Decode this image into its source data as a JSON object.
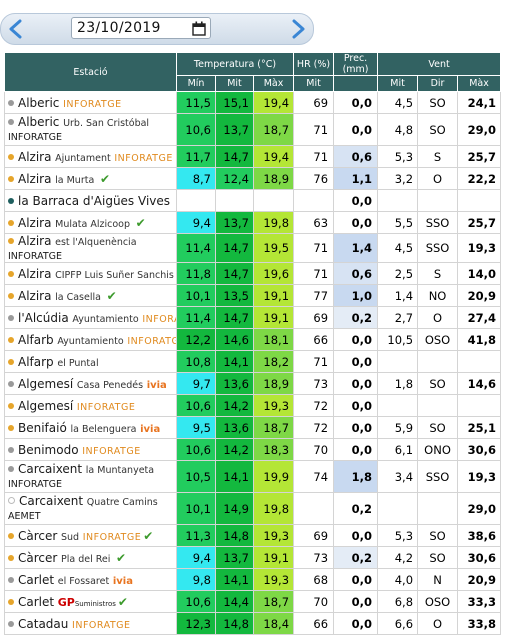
{
  "date_nav": {
    "date": "23/10/2019"
  },
  "headers": {
    "estacio": "Estació",
    "temperatura": "Temperatura (°C)",
    "hr": "HR (%)",
    "prec": "Prec. (mm)",
    "vent": "Vent",
    "min": "Mín",
    "mit": "Mit",
    "max": "Màx",
    "hr_mit": "Mit",
    "vent_mit": "Mit",
    "dir": "Dir",
    "vent_max": "Màx"
  },
  "rows": [
    {
      "name": "Alberic",
      "sub": "",
      "brand": "INFORATGE",
      "brand2": "",
      "check": false,
      "ivia": false,
      "gp": false,
      "dot": "#9a9a9a",
      "min": "11,5",
      "mit": "15,1",
      "max": "19,4",
      "hr": "69",
      "prec": "0,0",
      "vmit": "4,5",
      "dir": "SO",
      "vmax": "24,1",
      "cmin": "#22cc5e",
      "cmit": "#13b83e",
      "cmax": "#b4e636",
      "pbg": "#ffffff"
    },
    {
      "name": "Alberic",
      "sub": "Urb. San Cristóbal",
      "brand": "",
      "brand2": "INFORATGE",
      "check": false,
      "ivia": false,
      "gp": false,
      "dot": "#9a9a9a",
      "min": "10,6",
      "mit": "13,7",
      "max": "18,7",
      "hr": "71",
      "prec": "0,0",
      "vmit": "4,8",
      "dir": "SO",
      "vmax": "29,0",
      "cmin": "#22cc5e",
      "cmit": "#13b83e",
      "cmax": "#7ed846",
      "pbg": "#ffffff",
      "tall": true
    },
    {
      "name": "Alzira",
      "sub": "Ajuntament",
      "brand": "INFORATGE",
      "brand2": "",
      "check": false,
      "ivia": false,
      "gp": false,
      "dot": "#e6a52b",
      "min": "11,7",
      "mit": "14,7",
      "max": "19,4",
      "hr": "71",
      "prec": "0,6",
      "vmit": "5,3",
      "dir": "S",
      "vmax": "25,7",
      "cmin": "#22cc5e",
      "cmit": "#13b83e",
      "cmax": "#b4e636",
      "pbg": "#d7e3f3"
    },
    {
      "name": "Alzira",
      "sub": "la Murta",
      "brand": "",
      "brand2": "",
      "check": true,
      "ivia": false,
      "gp": false,
      "dot": "#e6a52b",
      "min": "8,7",
      "mit": "12,4",
      "max": "18,9",
      "hr": "76",
      "prec": "1,1",
      "vmit": "3,2",
      "dir": "O",
      "vmax": "22,2",
      "cmin": "#34e8f0",
      "cmit": "#22cc5e",
      "cmax": "#7ed846",
      "pbg": "#c8d9f0"
    },
    {
      "name": "la Barraca d'Aigües Vives",
      "sub": "",
      "brand": "",
      "brand2": "",
      "check": true,
      "ivia": false,
      "gp": false,
      "dot": "#1f5f5f",
      "min": "",
      "mit": "",
      "max": "",
      "hr": "",
      "prec": "0,0",
      "vmit": "",
      "dir": "",
      "vmax": "",
      "cmin": "#ffffff",
      "cmit": "#ffffff",
      "cmax": "#ffffff",
      "pbg": "#ffffff",
      "big": true
    },
    {
      "name": "Alzira",
      "sub": "Mulata Alzicoop",
      "brand": "",
      "brand2": "",
      "check": true,
      "ivia": false,
      "gp": false,
      "dot": "#e6a52b",
      "min": "9,4",
      "mit": "13,7",
      "max": "19,8",
      "hr": "63",
      "prec": "0,0",
      "vmit": "5,5",
      "dir": "SSO",
      "vmax": "25,7",
      "cmin": "#34e8f0",
      "cmit": "#13b83e",
      "cmax": "#b4e636",
      "pbg": "#ffffff"
    },
    {
      "name": "Alzira",
      "sub": "est l'Alquenència",
      "brand": "",
      "brand2": "INFORATGE",
      "check": false,
      "ivia": false,
      "gp": false,
      "dot": "#e6a52b",
      "min": "11,4",
      "mit": "14,7",
      "max": "19,5",
      "hr": "71",
      "prec": "1,4",
      "vmit": "4,5",
      "dir": "SSO",
      "vmax": "19,3",
      "cmin": "#22cc5e",
      "cmit": "#13b83e",
      "cmax": "#b4e636",
      "pbg": "#c8d9f0"
    },
    {
      "name": "Alzira",
      "sub": "CIPFP Luis Suñer Sanchis",
      "brand": "",
      "brand2": "",
      "check": false,
      "ivia": false,
      "gp": false,
      "dot": "#e6a52b",
      "min": "11,8",
      "mit": "14,7",
      "max": "19,6",
      "hr": "71",
      "prec": "0,6",
      "vmit": "2,5",
      "dir": "S",
      "vmax": "14,0",
      "cmin": "#22cc5e",
      "cmit": "#13b83e",
      "cmax": "#b4e636",
      "pbg": "#d7e3f3"
    },
    {
      "name": "Alzira",
      "sub": "la Casella",
      "brand": "",
      "brand2": "",
      "check": true,
      "ivia": false,
      "gp": false,
      "dot": "#e6a52b",
      "min": "10,1",
      "mit": "13,5",
      "max": "19,1",
      "hr": "77",
      "prec": "1,0",
      "vmit": "1,4",
      "dir": "NO",
      "vmax": "20,9",
      "cmin": "#22cc5e",
      "cmit": "#13b83e",
      "cmax": "#b4e636",
      "pbg": "#c8d9f0"
    },
    {
      "name": "l'Alcúdia",
      "sub": "Ayuntamiento",
      "brand": "INFORATGE",
      "brand2": "",
      "check": false,
      "ivia": false,
      "gp": false,
      "dot": "#9a9a9a",
      "min": "11,4",
      "mit": "14,7",
      "max": "19,1",
      "hr": "69",
      "prec": "0,2",
      "vmit": "2,7",
      "dir": "O",
      "vmax": "27,4",
      "cmin": "#22cc5e",
      "cmit": "#13b83e",
      "cmax": "#b4e636",
      "pbg": "#e4ecf6"
    },
    {
      "name": "Alfarb",
      "sub": "Ayuntamiento",
      "brand": "INFORATGE",
      "brand2": "",
      "check": false,
      "ivia": false,
      "gp": false,
      "dot": "#e6a52b",
      "min": "12,2",
      "mit": "14,6",
      "max": "18,1",
      "hr": "66",
      "prec": "0,0",
      "vmit": "10,5",
      "dir": "OSO",
      "vmax": "41,8",
      "cmin": "#13b83e",
      "cmit": "#13b83e",
      "cmax": "#7ed846",
      "pbg": "#ffffff"
    },
    {
      "name": "Alfarp",
      "sub": "el Puntal",
      "brand": "",
      "brand2": "",
      "check": false,
      "ivia": false,
      "gp": false,
      "dot": "#e6a52b",
      "min": "10,8",
      "mit": "14,1",
      "max": "18,2",
      "hr": "71",
      "prec": "0,0",
      "vmit": "",
      "dir": "",
      "vmax": "",
      "cmin": "#22cc5e",
      "cmit": "#13b83e",
      "cmax": "#7ed846",
      "pbg": "#ffffff"
    },
    {
      "name": "Algemesí",
      "sub": "Casa Penedés",
      "brand": "",
      "brand2": "",
      "check": false,
      "ivia": true,
      "gp": false,
      "dot": "#9a9a9a",
      "min": "9,7",
      "mit": "13,6",
      "max": "18,9",
      "hr": "73",
      "prec": "0,0",
      "vmit": "1,8",
      "dir": "SO",
      "vmax": "14,6",
      "cmin": "#34e8f0",
      "cmit": "#13b83e",
      "cmax": "#7ed846",
      "pbg": "#ffffff"
    },
    {
      "name": "Algemesí",
      "sub": "",
      "brand": "INFORATGE",
      "brand2": "",
      "check": false,
      "ivia": false,
      "gp": false,
      "dot": "#e6a52b",
      "min": "10,6",
      "mit": "14,2",
      "max": "19,3",
      "hr": "72",
      "prec": "0,0",
      "vmit": "",
      "dir": "",
      "vmax": "",
      "cmin": "#22cc5e",
      "cmit": "#13b83e",
      "cmax": "#b4e636",
      "pbg": "#ffffff"
    },
    {
      "name": "Benifaió",
      "sub": "la Belenguera",
      "brand": "",
      "brand2": "",
      "check": false,
      "ivia": true,
      "gp": false,
      "dot": "#e6a52b",
      "min": "9,5",
      "mit": "13,6",
      "max": "18,7",
      "hr": "72",
      "prec": "0,0",
      "vmit": "5,9",
      "dir": "SO",
      "vmax": "25,1",
      "cmin": "#34e8f0",
      "cmit": "#13b83e",
      "cmax": "#7ed846",
      "pbg": "#ffffff"
    },
    {
      "name": "Benimodo",
      "sub": "",
      "brand": "INFORATGE",
      "brand2": "",
      "check": false,
      "ivia": false,
      "gp": false,
      "dot": "#9a9a9a",
      "min": "10,6",
      "mit": "14,2",
      "max": "18,3",
      "hr": "70",
      "prec": "0,0",
      "vmit": "6,1",
      "dir": "ONO",
      "vmax": "30,6",
      "cmin": "#22cc5e",
      "cmit": "#13b83e",
      "cmax": "#7ed846",
      "pbg": "#ffffff"
    },
    {
      "name": "Carcaixent",
      "sub": "la Muntanyeta",
      "brand": "",
      "brand2": "INFORATGE",
      "check": false,
      "ivia": false,
      "gp": false,
      "dot": "#9a9a9a",
      "min": "10,5",
      "mit": "14,1",
      "max": "19,9",
      "hr": "74",
      "prec": "1,8",
      "vmit": "3,4",
      "dir": "SSO",
      "vmax": "19,3",
      "cmin": "#22cc5e",
      "cmit": "#13b83e",
      "cmax": "#b4e636",
      "pbg": "#c8d9f0",
      "tall": true
    },
    {
      "name": "Carcaixent",
      "sub": "Quatre Camins",
      "brand": "",
      "brand2": "AEMET",
      "check": false,
      "ivia": false,
      "gp": false,
      "dot": "hollow",
      "min": "10,1",
      "mit": "14,9",
      "max": "19,8",
      "hr": "",
      "prec": "0,2",
      "vmit": "",
      "dir": "",
      "vmax": "29,0",
      "cmin": "#22cc5e",
      "cmit": "#13b83e",
      "cmax": "#b4e636",
      "pbg": "#ffffff",
      "tall": true
    },
    {
      "name": "Càrcer",
      "sub": "Sud",
      "brand": "INFORATGE",
      "brand2": "",
      "check": true,
      "ivia": false,
      "gp": false,
      "dot": "#e6a52b",
      "min": "11,3",
      "mit": "14,8",
      "max": "19,3",
      "hr": "69",
      "prec": "0,0",
      "vmit": "5,3",
      "dir": "SO",
      "vmax": "38,6",
      "cmin": "#22cc5e",
      "cmit": "#13b83e",
      "cmax": "#b4e636",
      "pbg": "#ffffff"
    },
    {
      "name": "Càrcer",
      "sub": "Pla del Rei",
      "brand": "",
      "brand2": "",
      "check": true,
      "ivia": false,
      "gp": false,
      "dot": "#e6a52b",
      "min": "9,4",
      "mit": "13,7",
      "max": "19,1",
      "hr": "73",
      "prec": "0,2",
      "vmit": "4,2",
      "dir": "SO",
      "vmax": "30,6",
      "cmin": "#34e8f0",
      "cmit": "#13b83e",
      "cmax": "#b4e636",
      "pbg": "#e4ecf6"
    },
    {
      "name": "Carlet",
      "sub": "el Fossaret",
      "brand": "",
      "brand2": "",
      "check": false,
      "ivia": true,
      "gp": false,
      "dot": "#9a9a9a",
      "min": "9,8",
      "mit": "14,1",
      "max": "19,3",
      "hr": "68",
      "prec": "0,0",
      "vmit": "4,0",
      "dir": "N",
      "vmax": "20,9",
      "cmin": "#34e8f0",
      "cmit": "#13b83e",
      "cmax": "#b4e636",
      "pbg": "#ffffff"
    },
    {
      "name": "Carlet",
      "sub": "",
      "brand": "",
      "brand2": "",
      "check": true,
      "ivia": false,
      "gp": true,
      "dot": "#e6a52b",
      "min": "10,6",
      "mit": "14,4",
      "max": "18,7",
      "hr": "70",
      "prec": "0,0",
      "vmit": "6,8",
      "dir": "OSO",
      "vmax": "33,3",
      "cmin": "#22cc5e",
      "cmit": "#13b83e",
      "cmax": "#7ed846",
      "pbg": "#ffffff",
      "gp_text": "GP",
      "gp_small": "Suministros"
    },
    {
      "name": "Catadau",
      "sub": "",
      "brand": "INFORATGE",
      "brand2": "",
      "check": false,
      "ivia": false,
      "gp": false,
      "dot": "#9a9a9a",
      "min": "12,3",
      "mit": "14,8",
      "max": "18,4",
      "hr": "66",
      "prec": "0,0",
      "vmit": "6,6",
      "dir": "O",
      "vmax": "33,8",
      "cmin": "#13b83e",
      "cmit": "#13b83e",
      "cmax": "#7ed846",
      "pbg": "#ffffff"
    }
  ],
  "ivia_label": "ivia"
}
